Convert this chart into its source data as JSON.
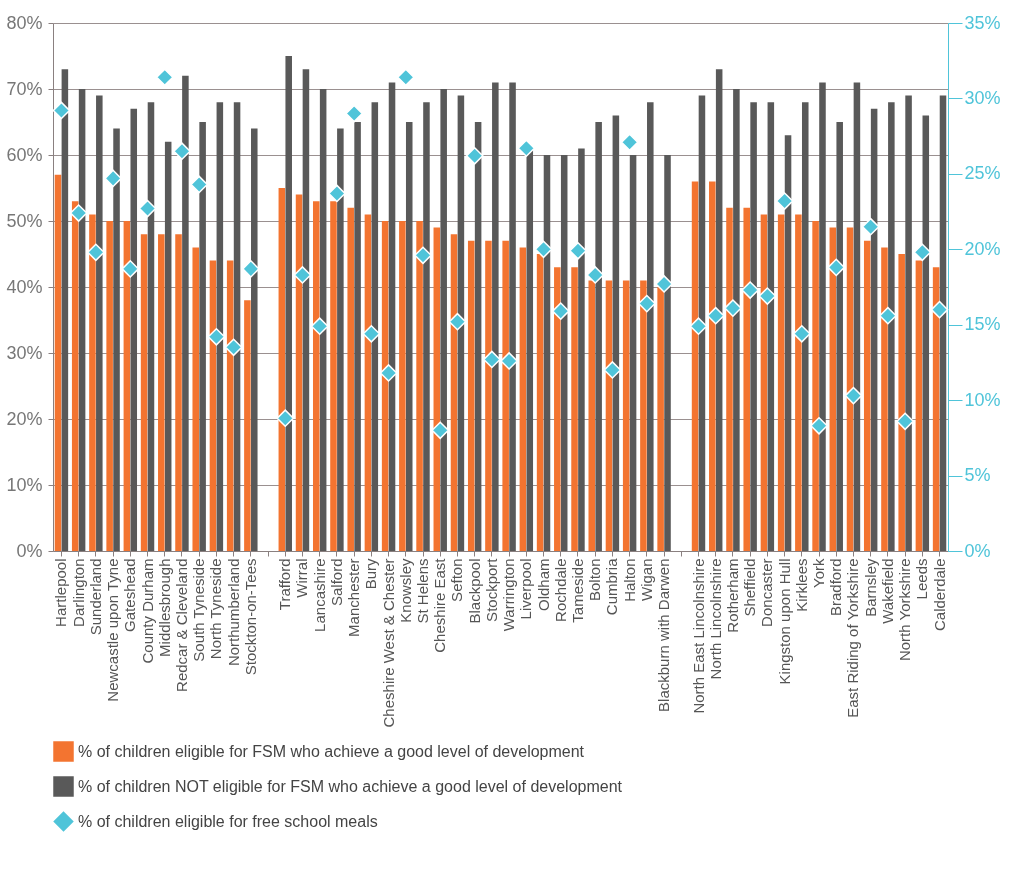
{
  "chart_data": {
    "type": "bar",
    "categories": [
      "Hartlepool",
      "Darlington",
      "Sunderland",
      "Newcastle upon Tyne",
      "Gateshead",
      "County Durham",
      "Middlesbrough",
      "Redcar & Cleveland",
      "South Tyneside",
      "North Tyneside",
      "Northumberland",
      "Stockton-on-Tees",
      null,
      "Trafford",
      "Wirral",
      "Lancashire",
      "Salford",
      "Manchester",
      "Bury",
      "Cheshire West & Chester",
      "Knowsley",
      "St Helens",
      "Cheshire East",
      "Sefton",
      "Blackpool",
      "Stockport",
      "Warrington",
      "Liverpool",
      "Oldham",
      "Rochdale",
      "Tameside",
      "Bolton",
      "Cumbria",
      "Halton",
      "Wigan",
      "Blackburn with Darwen",
      null,
      "North East Lincolnshire",
      "North Lincolnshire",
      "Rotherham",
      "Sheffield",
      "Doncaster",
      "Kingston upon Hull",
      "Kirklees",
      "York",
      "Bradford",
      "East Riding of Yorkshire",
      "Barnsley",
      "Wakefield",
      "North Yorkshire",
      "Leeds",
      "Calderdale"
    ],
    "series": [
      {
        "name": "% of children eligible for FSM who achieve a good level of development",
        "color": "#f37430",
        "values": [
          57,
          53,
          51,
          50,
          50,
          48,
          48,
          48,
          46,
          44,
          44,
          38,
          null,
          55,
          54,
          53,
          53,
          52,
          51,
          50,
          50,
          50,
          49,
          48,
          47,
          47,
          47,
          46,
          45,
          43,
          43,
          41,
          41,
          41,
          41,
          40,
          null,
          56,
          56,
          52,
          52,
          51,
          51,
          51,
          50,
          49,
          49,
          47,
          46,
          45,
          44,
          43
        ]
      },
      {
        "name": "% of children NOT eligible for FSM who achieve a good level of development",
        "color": "#595959",
        "values": [
          73,
          70,
          69,
          64,
          67,
          68,
          62,
          72,
          65,
          68,
          68,
          64,
          null,
          75,
          73,
          70,
          64,
          65,
          68,
          71,
          65,
          68,
          70,
          69,
          65,
          71,
          71,
          61,
          60,
          60,
          61,
          65,
          66,
          60,
          68,
          60,
          null,
          69,
          73,
          70,
          68,
          68,
          63,
          68,
          71,
          65,
          71,
          67,
          68,
          69,
          66,
          69
        ]
      },
      {
        "name": "% of children eligible for free school meals",
        "type": "scatter",
        "axis": "y2",
        "marker": "diamond",
        "color": "#4fc4d9",
        "values": [
          29.2,
          22.4,
          19.8,
          24.7,
          18.7,
          22.7,
          31.4,
          26.5,
          24.3,
          14.2,
          13.5,
          18.7,
          null,
          8.8,
          18.3,
          14.9,
          23.7,
          29.0,
          14.4,
          11.8,
          31.4,
          19.6,
          8.0,
          15.2,
          26.2,
          12.7,
          12.6,
          26.7,
          20.0,
          15.9,
          19.9,
          18.3,
          12.0,
          27.1,
          16.4,
          17.7,
          null,
          14.9,
          15.6,
          16.1,
          17.3,
          16.9,
          23.2,
          14.4,
          8.3,
          18.8,
          10.3,
          21.5,
          15.6,
          8.6,
          19.8,
          16.0
        ]
      }
    ],
    "ylim": [
      0,
      80
    ],
    "yticks": [
      {
        "value": 0,
        "label": "0%"
      },
      {
        "value": 10,
        "label": "10%"
      },
      {
        "value": 20,
        "label": "20%"
      },
      {
        "value": 30,
        "label": "30%"
      },
      {
        "value": 40,
        "label": "40%"
      },
      {
        "value": 50,
        "label": "50%"
      },
      {
        "value": 60,
        "label": "60%"
      },
      {
        "value": 70,
        "label": "70%"
      },
      {
        "value": 80,
        "label": "80%"
      }
    ],
    "y2lim": [
      0,
      35
    ],
    "y2ticks": [
      {
        "value": 0,
        "label": "0%"
      },
      {
        "value": 5,
        "label": "5%"
      },
      {
        "value": 10,
        "label": "10%"
      },
      {
        "value": 15,
        "label": "15%"
      },
      {
        "value": 20,
        "label": "20%"
      },
      {
        "value": 25,
        "label": "25%"
      },
      {
        "value": 30,
        "label": "30%"
      },
      {
        "value": 35,
        "label": "35%"
      }
    ],
    "grid": "y",
    "legend": "bottom"
  }
}
